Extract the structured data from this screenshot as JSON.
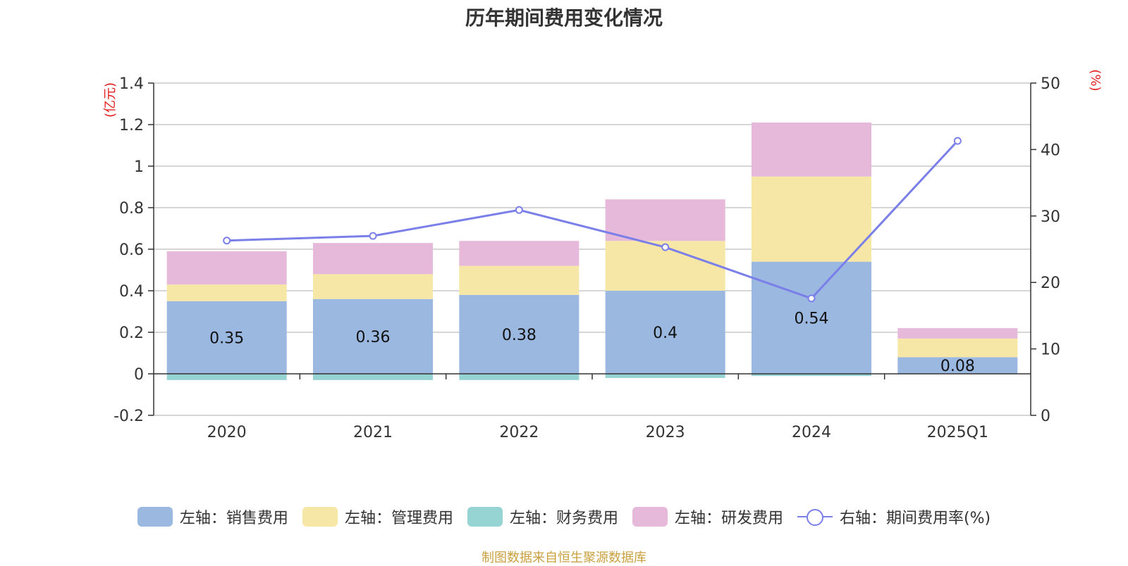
{
  "chart_data": {
    "type": "bar",
    "title": "历年期间费用变化情况",
    "categories": [
      "2020",
      "2021",
      "2022",
      "2023",
      "2024",
      "2025Q1"
    ],
    "left_axis": {
      "unit_label": "(亿元)",
      "ticks": [
        "1.4",
        "1.2",
        "1",
        "0.8",
        "0.6",
        "0.4",
        "0.2",
        "0",
        "-0.2"
      ],
      "ylim": [
        -0.2,
        1.4
      ]
    },
    "right_axis": {
      "unit_label": "(%)",
      "ticks": [
        "50",
        "40",
        "30",
        "20",
        "10",
        "0"
      ],
      "ylim": [
        0,
        50
      ]
    },
    "series": [
      {
        "name": "左轴：销售费用",
        "type": "bar",
        "stack": true,
        "color": "#9bb8e1",
        "values": [
          0.35,
          0.36,
          0.38,
          0.4,
          0.54,
          0.08
        ],
        "labels": [
          "0.35",
          "0.36",
          "0.38",
          "0.4",
          "0.54",
          "0.08"
        ]
      },
      {
        "name": "左轴：管理费用",
        "type": "bar",
        "stack": true,
        "color": "#f7e7a6",
        "values": [
          0.08,
          0.12,
          0.14,
          0.24,
          0.41,
          0.09
        ]
      },
      {
        "name": "左轴：财务费用",
        "type": "bar",
        "stack": true,
        "color": "#96d3d3",
        "values": [
          -0.03,
          -0.03,
          -0.03,
          -0.02,
          -0.01,
          0.0
        ]
      },
      {
        "name": "左轴：研发费用",
        "type": "bar",
        "stack": true,
        "color": "#e6b9da",
        "values": [
          0.16,
          0.15,
          0.12,
          0.2,
          0.26,
          0.05
        ]
      },
      {
        "name": "右轴：期间费用率(%)",
        "type": "line",
        "axis": "right",
        "color": "#7b7fe8",
        "values": [
          26.3,
          27.0,
          30.9,
          25.3,
          17.6,
          41.3
        ]
      }
    ],
    "legend_position": "bottom-center",
    "grid": true
  },
  "source_note": "制图数据来自恒生聚源数据库"
}
